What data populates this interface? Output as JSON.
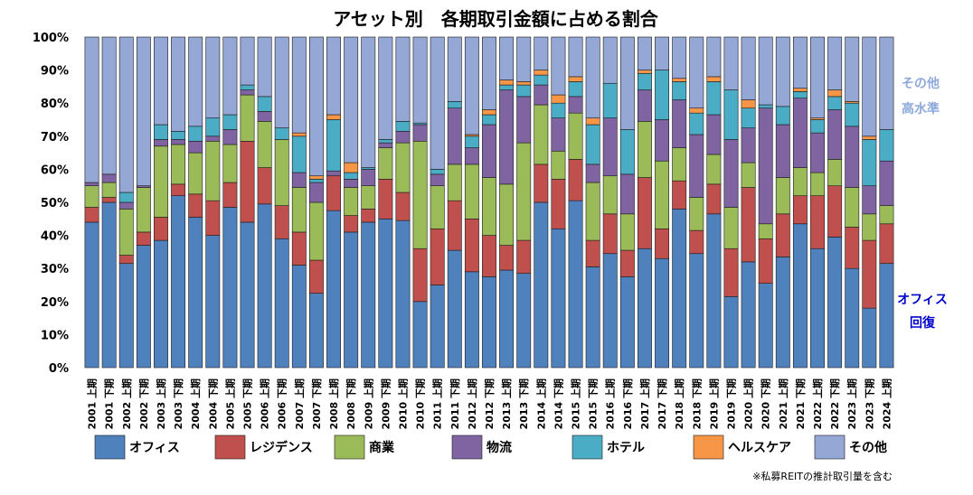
{
  "chart_data": {
    "type": "bar",
    "stacked": true,
    "title": "アセット別　各期取引金額に占める割合",
    "note": "※私募REITの推計取引量を含む",
    "ylim": [
      0,
      100
    ],
    "y_ticks": [
      "0%",
      "10%",
      "20%",
      "30%",
      "40%",
      "50%",
      "60%",
      "70%",
      "80%",
      "90%",
      "100%"
    ],
    "grid": false,
    "legend_position": "bottom",
    "categories": [
      "2001 上期",
      "2001 下期",
      "2002 上期",
      "2002 下期",
      "2003 上期",
      "2003 下期",
      "2004 上期",
      "2004 下期",
      "2005 上期",
      "2005 下期",
      "2006 上期",
      "2006 下期",
      "2007 上期",
      "2007 下期",
      "2008 上期",
      "2008 下期",
      "2009 上期",
      "2009 下期",
      "2010 上期",
      "2010 下期",
      "2011 上期",
      "2011 下期",
      "2012 上期",
      "2012 下期",
      "2013 上期",
      "2013 下期",
      "2014 上期",
      "2014 下期",
      "2015 上期",
      "2015 下期",
      "2016 上期",
      "2016 下期",
      "2017 上期",
      "2017 下期",
      "2018 上期",
      "2018 下期",
      "2019 上期",
      "2019 下期",
      "2020 上期",
      "2020 下期",
      "2021 上期",
      "2021 下期",
      "2022 上期",
      "2022 下期",
      "2023 上期",
      "2023 下期",
      "2024 上期"
    ],
    "series": [
      {
        "name": "オフィス",
        "color": "#4F81BD",
        "values": [
          44,
          50,
          31.5,
          37,
          38.5,
          52,
          45.5,
          40,
          48.5,
          44,
          49.5,
          39,
          31,
          22.5,
          47.5,
          41,
          44,
          45,
          44.5,
          20,
          25,
          35.5,
          29,
          27.5,
          29.5,
          28.5,
          50,
          42,
          50.5,
          30.5,
          34.5,
          27.5,
          36,
          33,
          48,
          34.5,
          46.5,
          21.5,
          32,
          25.5,
          33.5,
          43.5,
          36,
          39.5,
          30,
          18,
          31.5
        ]
      },
      {
        "name": "レジデンス",
        "color": "#C0504D",
        "values": [
          4.5,
          1.5,
          2.5,
          4,
          7,
          3.5,
          7,
          10.5,
          7.5,
          24.5,
          11,
          10,
          10,
          10,
          10.5,
          5,
          4,
          12,
          8.5,
          16,
          17,
          15,
          16,
          12.5,
          7.5,
          10,
          11.5,
          15,
          12.5,
          8,
          12,
          8,
          21.5,
          9,
          8.5,
          7,
          9,
          14.5,
          22.5,
          13.5,
          13,
          8.5,
          16,
          15.5,
          12.5,
          20.5,
          12
        ]
      },
      {
        "name": "商業",
        "color": "#9BBB59",
        "values": [
          6.5,
          4.5,
          14,
          13.5,
          21.5,
          12,
          12.5,
          18,
          11.5,
          14,
          14,
          20,
          13.5,
          17.5,
          0,
          8.5,
          7,
          9.5,
          15,
          32.5,
          13,
          11,
          16.5,
          17.5,
          18.5,
          29.5,
          18,
          8.5,
          14,
          17.5,
          11.5,
          11,
          17,
          20.5,
          10,
          10,
          9,
          12.5,
          7.5,
          4.5,
          11,
          8.5,
          7,
          8,
          12,
          8,
          5.5
        ]
      },
      {
        "name": "物流",
        "color": "#8064A2",
        "values": [
          1,
          2.5,
          2,
          0.5,
          2,
          1.5,
          3.5,
          1.5,
          4.5,
          1.5,
          3,
          0,
          4.5,
          6,
          1.5,
          2.5,
          5,
          1.5,
          3.5,
          5,
          3.5,
          17,
          5,
          16,
          28.5,
          14,
          6,
          10,
          5,
          5.5,
          17.5,
          12,
          9.5,
          12.5,
          14.5,
          19,
          12,
          20.5,
          10.5,
          35,
          16,
          21,
          12,
          15,
          18.5,
          8.5,
          13.5
        ]
      },
      {
        "name": "ホテル",
        "color": "#4BACC6",
        "values": [
          0,
          0,
          3,
          0,
          4.5,
          2.5,
          4.5,
          5.5,
          4.5,
          1.5,
          4.5,
          3.5,
          11,
          1,
          15.5,
          2,
          0.5,
          1,
          3,
          0.5,
          1.5,
          2,
          3.5,
          3,
          1.5,
          3.5,
          3,
          4.5,
          4.5,
          12,
          10.5,
          13.5,
          5,
          15,
          5.5,
          6.5,
          10,
          15,
          6,
          1,
          5.5,
          2,
          4,
          4,
          7,
          14,
          9.5
        ]
      },
      {
        "name": "ヘルスケア",
        "color": "#F79646",
        "values": [
          0,
          0,
          0,
          0,
          0,
          0,
          0,
          0,
          0,
          0,
          0,
          0,
          1,
          1,
          1.5,
          3,
          0,
          0,
          0,
          0,
          0,
          0,
          0.5,
          1.5,
          1.5,
          1,
          1.5,
          2.5,
          1.5,
          2,
          0,
          0,
          1,
          0,
          1,
          1.5,
          1.5,
          0,
          2.5,
          0,
          0,
          1,
          0.5,
          2,
          0.5,
          1,
          0
        ]
      },
      {
        "name": "その他",
        "color": "#95A7D4",
        "values": [
          44,
          41.5,
          47,
          45,
          26.5,
          28.5,
          27,
          24.5,
          23.5,
          14.5,
          18,
          27.5,
          29,
          42,
          23.5,
          38,
          39.5,
          31,
          25.5,
          26,
          40,
          19.5,
          29.5,
          22,
          13,
          13.5,
          10,
          17.5,
          12,
          24.5,
          14,
          28,
          10,
          10,
          12.5,
          21.5,
          12,
          16,
          19,
          20.5,
          21,
          15.5,
          24.5,
          16,
          19.5,
          30,
          28
        ]
      }
    ],
    "annotations": [
      {
        "text": "その他",
        "style": "light"
      },
      {
        "text": "高水準",
        "style": "light"
      },
      {
        "text": "オフィス",
        "style": "dark"
      },
      {
        "text": "回復",
        "style": "dark"
      }
    ]
  }
}
